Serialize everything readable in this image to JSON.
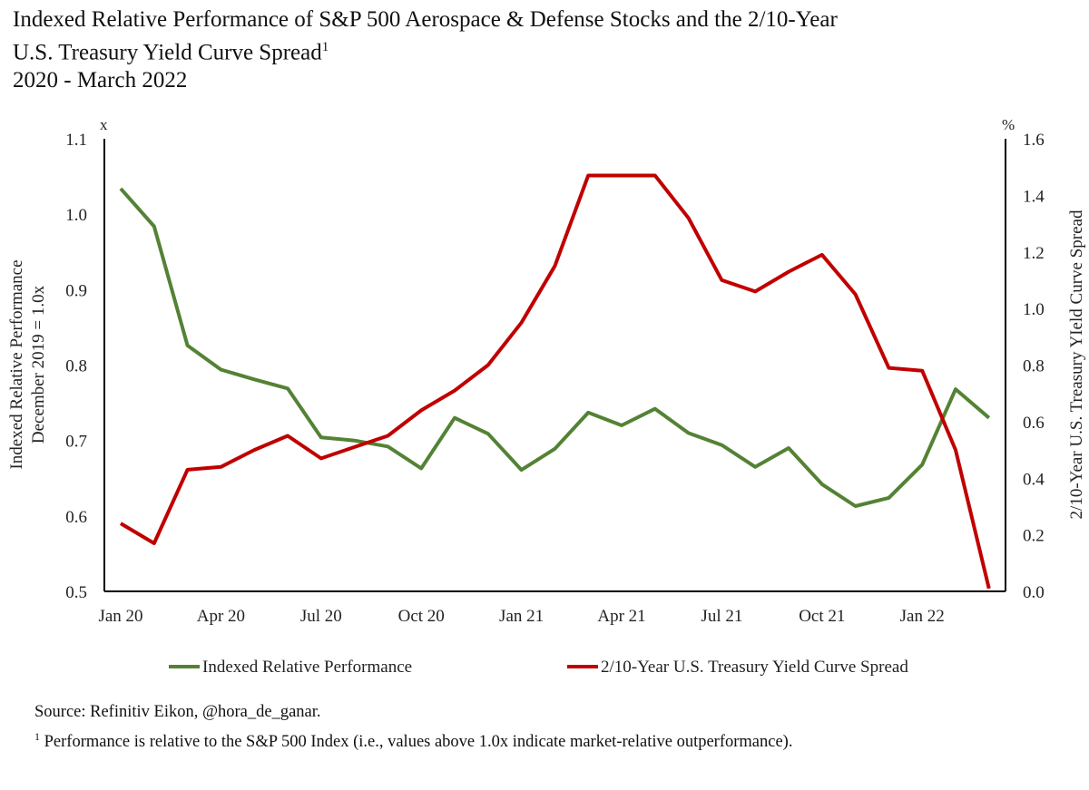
{
  "title": {
    "line1": "Indexed Relative Performance of S&P 500 Aerospace & Defense Stocks and the 2/10-Year",
    "line2": "U.S. Treasury Yield Curve Spread",
    "line2_sup": "1",
    "line3": "2020 - March 2022"
  },
  "source": {
    "text": "Source: Refinitiv Eikon, @hora_de_ganar.",
    "footnote_mark": "1",
    "footnote": " Performance is relative to the S&P 500 Index (i.e., values above 1.0x indicate market-relative outperformance)."
  },
  "chart_data": {
    "type": "line",
    "x": [
      "Jan 20",
      "Feb 20",
      "Mar 20",
      "Apr 20",
      "May 20",
      "Jun 20",
      "Jul 20",
      "Aug 20",
      "Sep 20",
      "Oct 20",
      "Nov 20",
      "Dec 20",
      "Jan 21",
      "Feb 21",
      "Mar 21",
      "Apr 21",
      "May 21",
      "Jun 21",
      "Jul 21",
      "Aug 21",
      "Sep 21",
      "Oct 21",
      "Nov 21",
      "Dec 21",
      "Jan 22",
      "Feb 22",
      "Mar 22"
    ],
    "x_tick_labels": [
      "Jan 20",
      "Apr 20",
      "Jul 20",
      "Oct 20",
      "Jan 21",
      "Apr 21",
      "Jul 21",
      "Oct 21",
      "Jan 22"
    ],
    "series": [
      {
        "name": "Indexed Relative Performance",
        "axis": "left",
        "color": "#548235",
        "values": [
          1.034,
          0.984,
          0.826,
          0.794,
          0.781,
          0.769,
          0.704,
          0.7,
          0.692,
          0.663,
          0.73,
          0.709,
          0.661,
          0.689,
          0.737,
          0.72,
          0.742,
          0.71,
          0.694,
          0.665,
          0.69,
          0.642,
          0.613,
          0.624,
          0.668,
          0.768,
          0.73
        ]
      },
      {
        "name": "2/10-Year U.S. Treasury Yield Curve Spread",
        "axis": "right",
        "color": "#C00000",
        "values": [
          0.24,
          0.17,
          0.43,
          0.44,
          0.5,
          0.55,
          0.47,
          0.51,
          0.55,
          0.64,
          0.71,
          0.8,
          0.95,
          1.15,
          1.47,
          1.47,
          1.47,
          1.32,
          1.1,
          1.06,
          1.13,
          1.19,
          1.05,
          0.79,
          0.78,
          0.5,
          0.01
        ]
      }
    ],
    "y_left": {
      "label_line1": "Indexed Relative Performance",
      "label_line2": "December 2019 = 1.0x",
      "unit": "x",
      "ylim": [
        0.5,
        1.1
      ],
      "ticks": [
        "0.5",
        "0.6",
        "0.7",
        "0.8",
        "0.9",
        "1.0",
        "1.1"
      ]
    },
    "y_right": {
      "label": "2/10-Year U.S. Treasury YIeld Curve Spread",
      "unit": "%",
      "ylim": [
        0,
        1.6
      ],
      "ticks": [
        "0.0",
        "0.2",
        "0.4",
        "0.6",
        "0.8",
        "1.0",
        "1.2",
        "1.4",
        "1.6"
      ]
    },
    "legend": "bottom",
    "grid": false
  }
}
